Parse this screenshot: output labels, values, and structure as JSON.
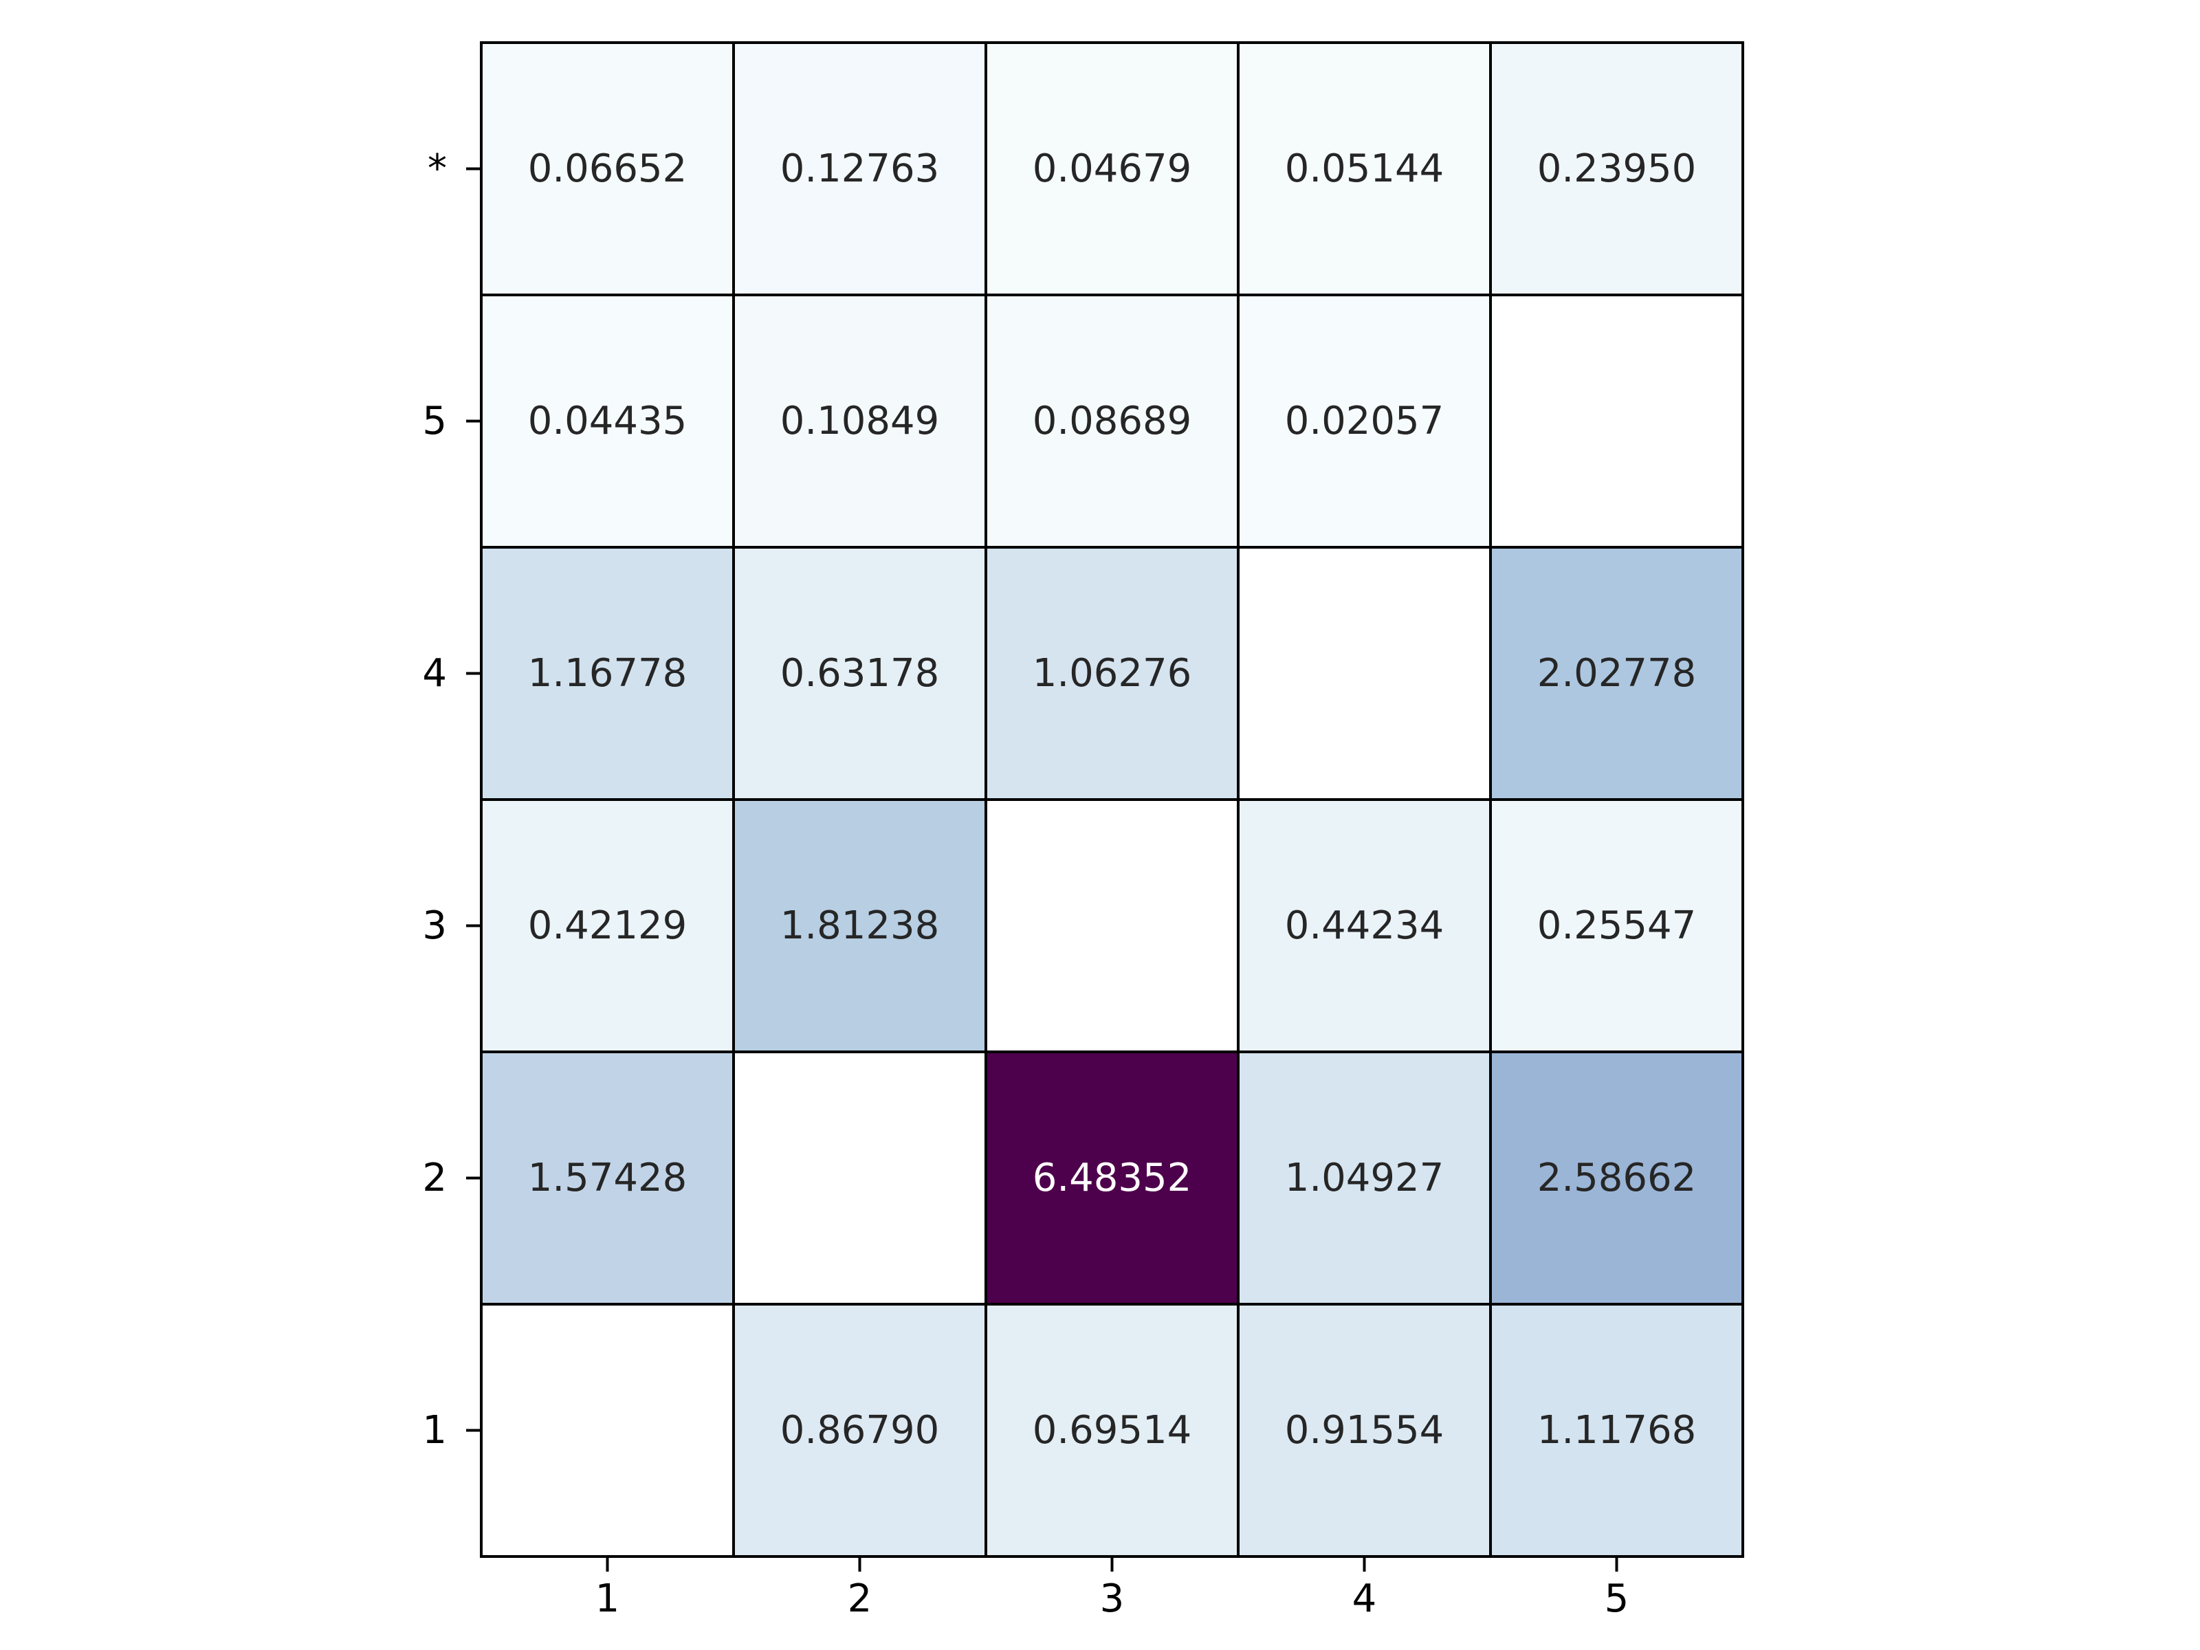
{
  "chart_data": {
    "type": "heatmap",
    "title": "",
    "xlabel": "",
    "ylabel": "",
    "x_categories": [
      "1",
      "2",
      "3",
      "4",
      "5"
    ],
    "y_categories": [
      "*",
      "5",
      "4",
      "3",
      "2",
      "1"
    ],
    "values": [
      [
        0.06652,
        0.12763,
        0.04679,
        0.05144,
        0.2395
      ],
      [
        0.04435,
        0.10849,
        0.08689,
        0.02057,
        null
      ],
      [
        1.16778,
        0.63178,
        1.06276,
        null,
        2.02778
      ],
      [
        0.42129,
        1.81238,
        null,
        0.44234,
        0.25547
      ],
      [
        1.57428,
        null,
        6.48352,
        1.04927,
        2.58662
      ],
      [
        null,
        0.8679,
        0.69514,
        0.91554,
        1.11768
      ]
    ],
    "labels": [
      [
        "0.06652",
        "0.12763",
        "0.04679",
        "0.05144",
        "0.23950"
      ],
      [
        "0.04435",
        "0.10849",
        "0.08689",
        "0.02057",
        ""
      ],
      [
        "1.16778",
        "0.63178",
        "1.06276",
        "",
        "2.02778"
      ],
      [
        "0.42129",
        "1.81238",
        "",
        "0.44234",
        "0.25547"
      ],
      [
        "1.57428",
        "",
        "6.48352",
        "1.04927",
        "2.58662"
      ],
      [
        "",
        "0.86790",
        "0.69514",
        "0.91554",
        "1.11768"
      ]
    ],
    "colormap": "BuPu",
    "value_range": [
      0,
      6.48352
    ],
    "colors": {
      "low": "#f7fcfd",
      "high": "#4d004b",
      "empty": "#ffffff",
      "grid_line": "#000000",
      "text_dark": "#262626",
      "text_light": "#ffffff"
    },
    "grid": true,
    "legend": "none"
  }
}
